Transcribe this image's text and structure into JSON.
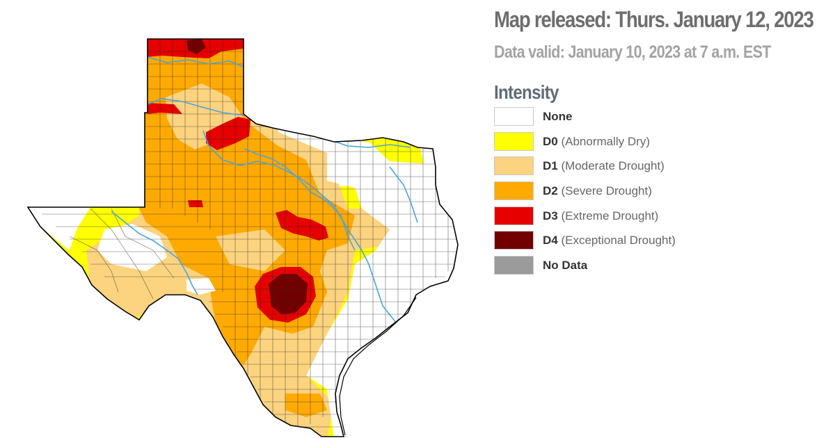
{
  "header": {
    "released": "Map released: Thurs. January 12, 2023",
    "valid": "Data valid: January 10, 2023 at 7 a.m. EST"
  },
  "legend": {
    "title": "Intensity",
    "items": [
      {
        "code": "None",
        "label": "",
        "color": "#ffffff"
      },
      {
        "code": "D0",
        "label": "(Abnormally Dry)",
        "color": "#ffff00"
      },
      {
        "code": "D1",
        "label": "(Moderate Drought)",
        "color": "#fcd37f"
      },
      {
        "code": "D2",
        "label": "(Severe Drought)",
        "color": "#ffaa00"
      },
      {
        "code": "D3",
        "label": "(Extreme Drought)",
        "color": "#e60000"
      },
      {
        "code": "D4",
        "label": "(Exceptional Drought)",
        "color": "#730000"
      },
      {
        "code": "No Data",
        "label": "",
        "color": "#9b9b9b"
      }
    ]
  },
  "map": {
    "region": "Texas",
    "colors": {
      "river": "#4aa3df",
      "county_line": "#2a2a2a",
      "outline": "#000000"
    }
  }
}
